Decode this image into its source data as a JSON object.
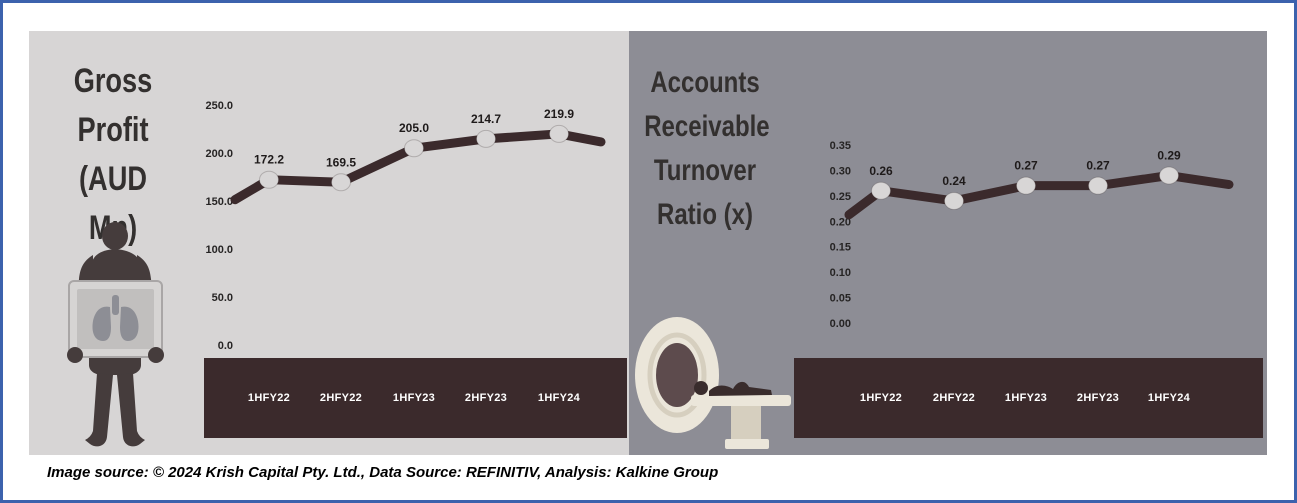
{
  "footer": {
    "text": "Image source: © 2024 Krish Capital Pty. Ltd., Data Source: REFINITIV, Analysis: Kalkine Group"
  },
  "colors": {
    "border": "#3c62ad",
    "left_panel_bg": "#d7d5d5",
    "right_panel_bg": "#8d8d95",
    "line": "#3b2a2c",
    "marker": "#d8d6d6",
    "band": "#3b2a2c",
    "band_text": "#ffffff",
    "title_text": "#33302f",
    "axis_text": "#262424",
    "label_text": "#1e1a1a",
    "silhouette": "#453c3c",
    "machine": "#ebe6da",
    "machine_shade": "#d6cfbf",
    "machine_hole": "#5d4b4d",
    "xray_frame": "#d6d4d3",
    "xray_screen": "#c1bfbe",
    "lung": "#8d8e95",
    "person": "#392c2c"
  },
  "chart_data": [
    {
      "type": "line",
      "title": "Gross Profit (AUD Mn)",
      "title_lines": [
        "Gross",
        "Profit",
        "(AUD Mn)"
      ],
      "categories": [
        "1HFY22",
        "2HFY22",
        "1HFY23",
        "2HFY23",
        "1HFY24"
      ],
      "values": [
        172.2,
        169.5,
        205.0,
        214.7,
        219.9
      ],
      "data_labels": [
        "172.2",
        "169.5",
        "205.0",
        "214.7",
        "219.9"
      ],
      "xlabel": "",
      "ylabel": "",
      "ylim": [
        0,
        250
      ],
      "ytick_step": 50,
      "ytick_labels": [
        "250.0",
        "200.0",
        "150.0",
        "100.0",
        "50.0",
        "0.0"
      ],
      "grid": false,
      "legend": "none"
    },
    {
      "type": "line",
      "title": "Accounts Receivable Turnover Ratio (x)",
      "title_lines": [
        "Accounts",
        "Receivable",
        "Turnover",
        "Ratio (x)"
      ],
      "categories": [
        "1HFY22",
        "2HFY22",
        "1HFY23",
        "2HFY23",
        "1HFY24"
      ],
      "values": [
        0.26,
        0.24,
        0.27,
        0.27,
        0.29
      ],
      "data_labels": [
        "0.26",
        "0.24",
        "0.27",
        "0.27",
        "0.29"
      ],
      "xlabel": "",
      "ylabel": "",
      "ylim": [
        0,
        0.35
      ],
      "ytick_step": 0.05,
      "ytick_labels": [
        "0.35",
        "0.30",
        "0.25",
        "0.20",
        "0.15",
        "0.10",
        "0.05",
        "0.00"
      ],
      "grid": false,
      "legend": "none"
    }
  ]
}
